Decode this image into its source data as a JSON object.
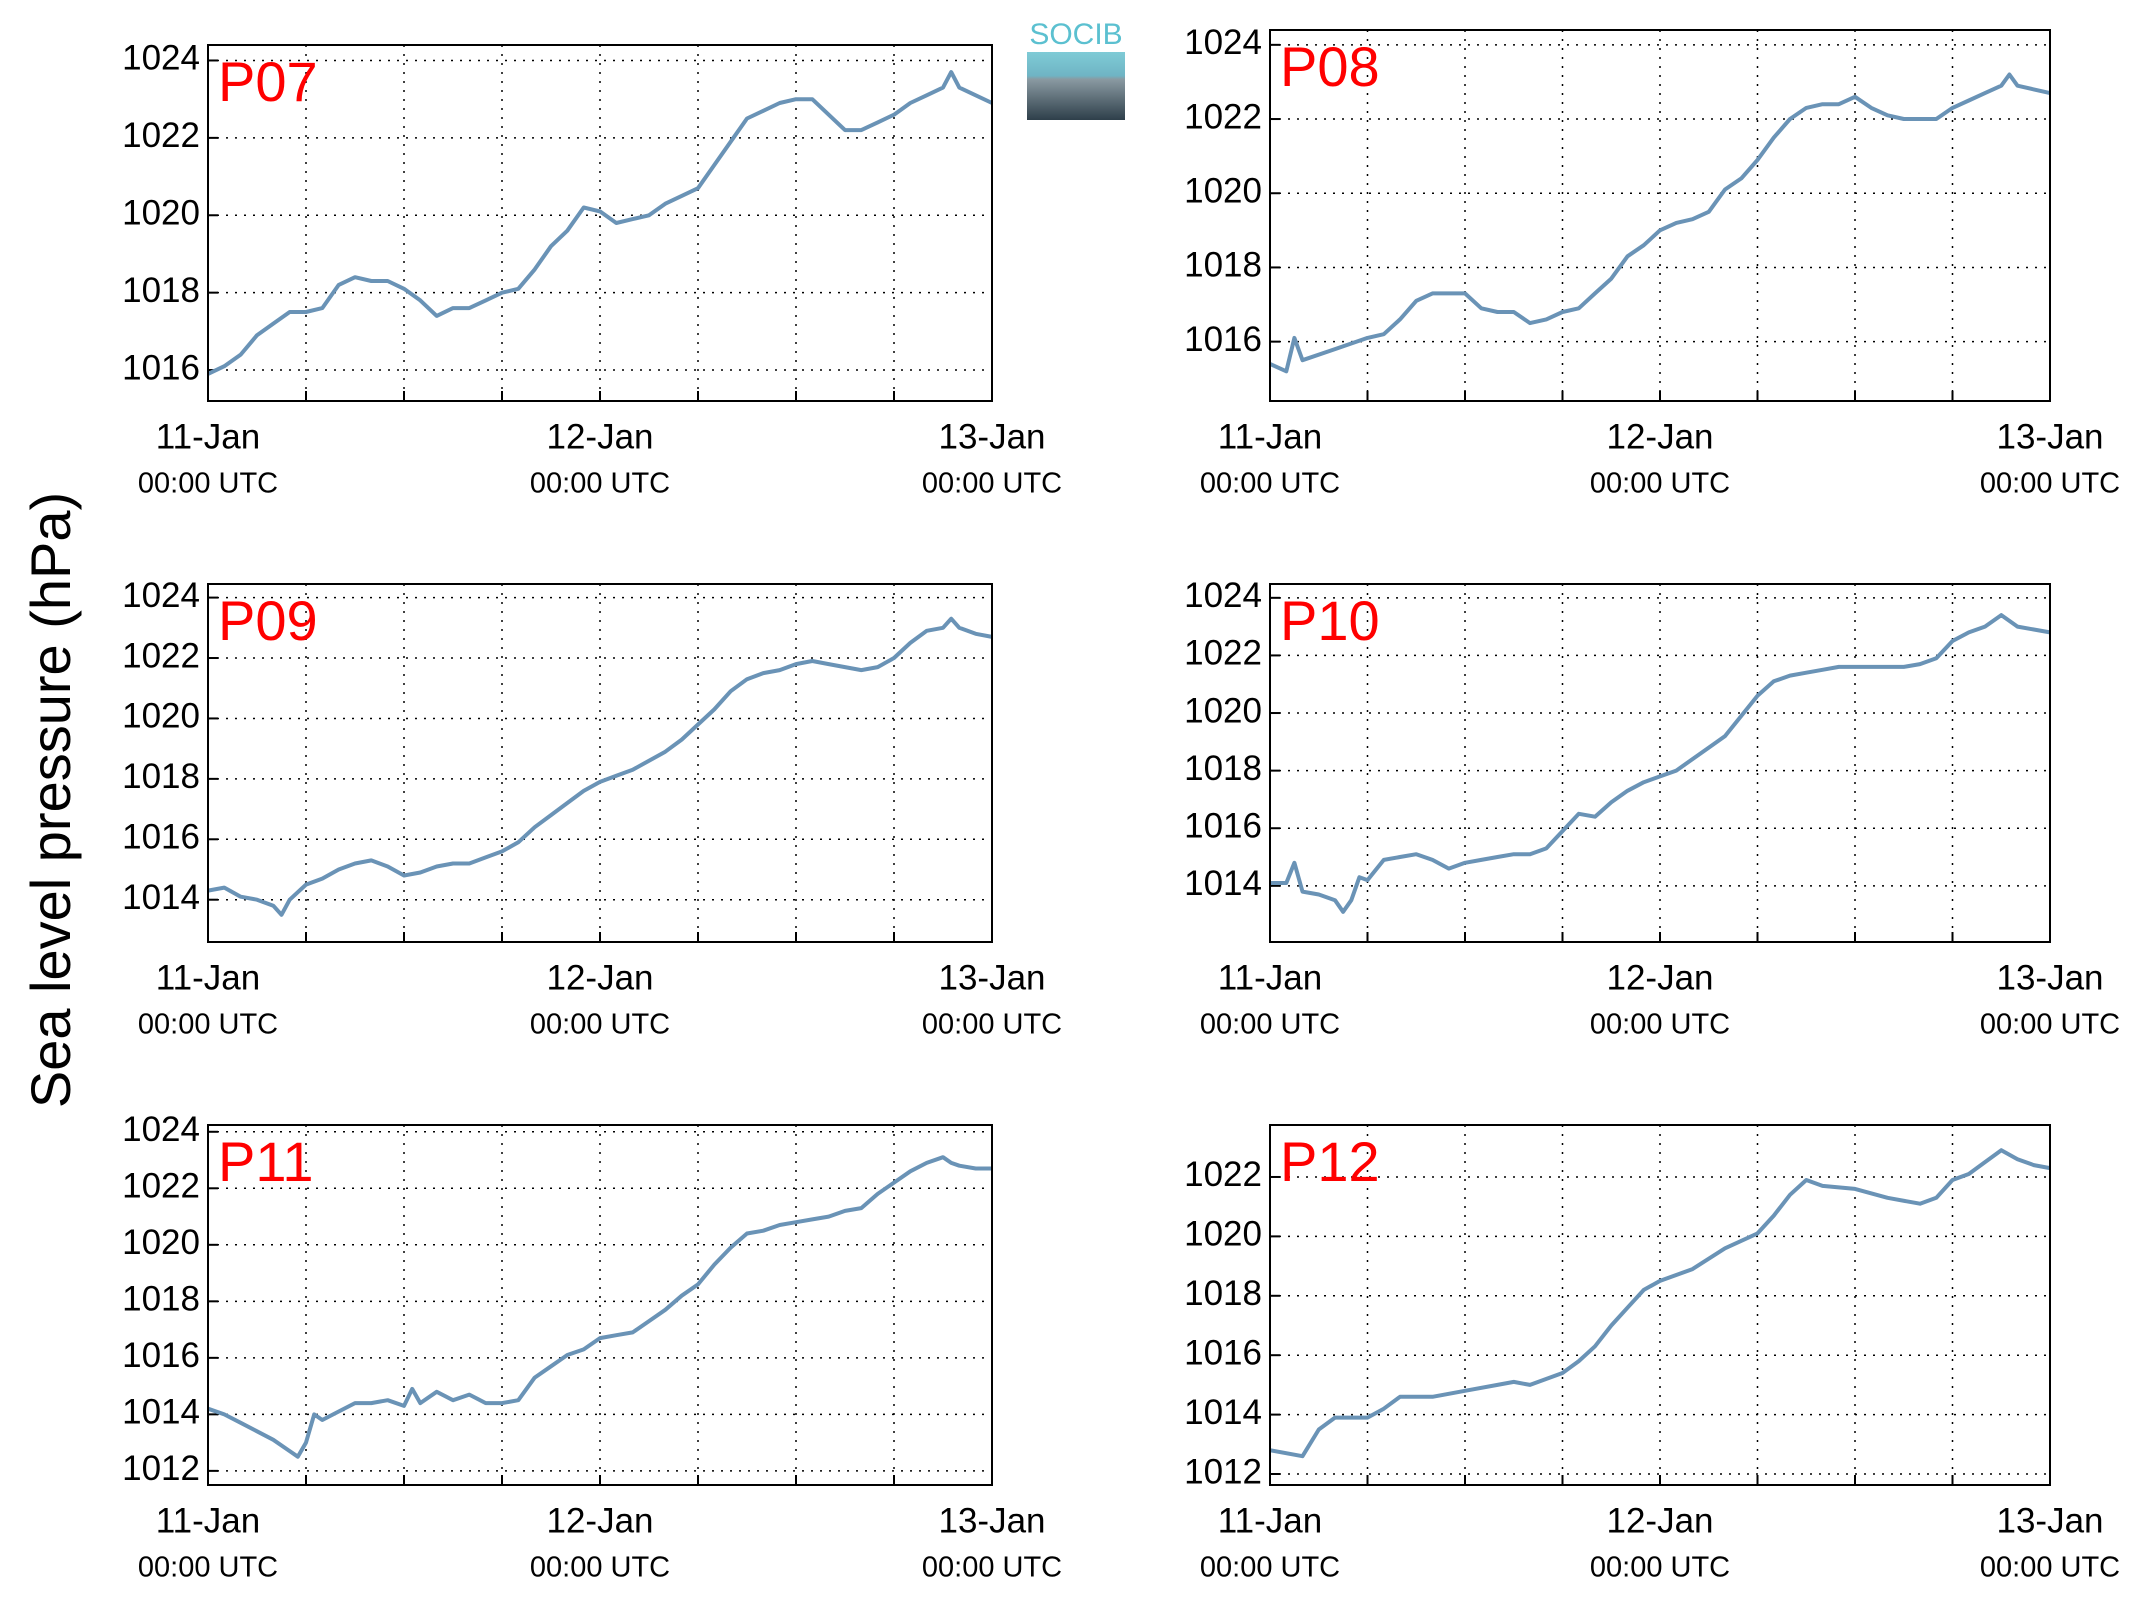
{
  "figure": {
    "ylabel": "Sea level pressure (hPa)",
    "logo": "SOCIB"
  },
  "chart_data": [
    {
      "type": "line",
      "title": "P07",
      "xlim": [
        0,
        48
      ],
      "ylim": [
        1015.2,
        1024.4
      ],
      "yticks": [
        1016,
        1018,
        1020,
        1022,
        1024
      ],
      "grid": true,
      "xticks": [
        {
          "value": 0,
          "label": "11-Jan",
          "sublabel": "00:00 UTC"
        },
        {
          "value": 6,
          "label": null
        },
        {
          "value": 12,
          "label": null
        },
        {
          "value": 18,
          "label": null
        },
        {
          "value": 24,
          "label": "12-Jan",
          "sublabel": "00:00 UTC"
        },
        {
          "value": 30,
          "label": null
        },
        {
          "value": 36,
          "label": null
        },
        {
          "value": 42,
          "label": null
        },
        {
          "value": 48,
          "label": "13-Jan",
          "sublabel": "00:00 UTC"
        }
      ],
      "x": [
        0,
        1,
        2,
        3,
        4,
        5,
        6,
        7,
        8,
        9,
        10,
        11,
        12,
        13,
        14,
        15,
        16,
        17,
        18,
        19,
        20,
        21,
        22,
        23,
        24,
        25,
        26,
        27,
        28,
        29,
        30,
        31,
        32,
        33,
        34,
        35,
        36,
        37,
        38,
        39,
        40,
        41,
        42,
        43,
        44,
        45,
        45.5,
        46,
        47,
        48
      ],
      "series": [
        {
          "color": "#6a93b6",
          "values": [
            1015.9,
            1016.1,
            1016.4,
            1016.9,
            1017.2,
            1017.5,
            1017.5,
            1017.6,
            1018.2,
            1018.4,
            1018.3,
            1018.3,
            1018.1,
            1017.8,
            1017.4,
            1017.6,
            1017.6,
            1017.8,
            1018.0,
            1018.1,
            1018.6,
            1019.2,
            1019.6,
            1020.2,
            1020.1,
            1019.8,
            1019.9,
            1020.0,
            1020.3,
            1020.5,
            1020.7,
            1021.3,
            1021.9,
            1022.5,
            1022.7,
            1022.9,
            1023.0,
            1023.0,
            1022.6,
            1022.2,
            1022.2,
            1022.4,
            1022.6,
            1022.9,
            1023.1,
            1023.3,
            1023.7,
            1023.3,
            1023.1,
            1022.9
          ]
        }
      ]
    },
    {
      "type": "line",
      "title": "P08",
      "xlim": [
        0,
        48
      ],
      "ylim": [
        1014.4,
        1024.4
      ],
      "yticks": [
        1016,
        1018,
        1020,
        1022,
        1024
      ],
      "grid": true,
      "xticks": [
        {
          "value": 0,
          "label": "11-Jan",
          "sublabel": "00:00 UTC"
        },
        {
          "value": 6,
          "label": null
        },
        {
          "value": 12,
          "label": null
        },
        {
          "value": 18,
          "label": null
        },
        {
          "value": 24,
          "label": "12-Jan",
          "sublabel": "00:00 UTC"
        },
        {
          "value": 30,
          "label": null
        },
        {
          "value": 36,
          "label": null
        },
        {
          "value": 42,
          "label": null
        },
        {
          "value": 48,
          "label": "13-Jan",
          "sublabel": "00:00 UTC"
        }
      ],
      "x": [
        0,
        1,
        1.5,
        2,
        4,
        6,
        7,
        8,
        9,
        10,
        11,
        12,
        13,
        14,
        15,
        16,
        17,
        18,
        19,
        20,
        21,
        22,
        23,
        24,
        25,
        26,
        27,
        28,
        29,
        30,
        31,
        32,
        33,
        34,
        35,
        36,
        37,
        38,
        39,
        40,
        41,
        42,
        43,
        44,
        45,
        45.5,
        46,
        47,
        48
      ],
      "series": [
        {
          "color": "#6a93b6",
          "values": [
            1015.4,
            1015.2,
            1016.1,
            1015.5,
            1015.8,
            1016.1,
            1016.2,
            1016.6,
            1017.1,
            1017.3,
            1017.3,
            1017.3,
            1016.9,
            1016.8,
            1016.8,
            1016.5,
            1016.6,
            1016.8,
            1016.9,
            1017.3,
            1017.7,
            1018.3,
            1018.6,
            1019.0,
            1019.2,
            1019.3,
            1019.5,
            1020.1,
            1020.4,
            1020.9,
            1021.5,
            1022.0,
            1022.3,
            1022.4,
            1022.4,
            1022.6,
            1022.3,
            1022.1,
            1022.0,
            1022.0,
            1022.0,
            1022.3,
            1022.5,
            1022.7,
            1022.9,
            1023.2,
            1022.9,
            1022.8,
            1022.7
          ]
        }
      ]
    },
    {
      "type": "line",
      "title": "P09",
      "xlim": [
        0,
        48
      ],
      "ylim": [
        1012.6,
        1024.45
      ],
      "yticks": [
        1014,
        1016,
        1018,
        1020,
        1022,
        1024
      ],
      "grid": true,
      "xticks": [
        {
          "value": 0,
          "label": "11-Jan",
          "sublabel": "00:00 UTC"
        },
        {
          "value": 6,
          "label": null
        },
        {
          "value": 12,
          "label": null
        },
        {
          "value": 18,
          "label": null
        },
        {
          "value": 24,
          "label": "12-Jan",
          "sublabel": "00:00 UTC"
        },
        {
          "value": 30,
          "label": null
        },
        {
          "value": 36,
          "label": null
        },
        {
          "value": 42,
          "label": null
        },
        {
          "value": 48,
          "label": "13-Jan",
          "sublabel": "00:00 UTC"
        }
      ],
      "x": [
        0,
        1,
        2,
        3,
        4,
        4.5,
        5,
        6,
        7,
        8,
        9,
        10,
        11,
        12,
        13,
        14,
        15,
        16,
        17,
        18,
        19,
        20,
        21,
        22,
        23,
        24,
        25,
        26,
        27,
        28,
        29,
        30,
        31,
        32,
        33,
        34,
        35,
        36,
        37,
        38,
        39,
        40,
        41,
        42,
        43,
        44,
        45,
        45.5,
        46,
        47,
        48
      ],
      "series": [
        {
          "color": "#6a93b6",
          "values": [
            1014.3,
            1014.4,
            1014.1,
            1014.0,
            1013.8,
            1013.5,
            1014.0,
            1014.5,
            1014.7,
            1015.0,
            1015.2,
            1015.3,
            1015.1,
            1014.8,
            1014.9,
            1015.1,
            1015.2,
            1015.2,
            1015.4,
            1015.6,
            1015.9,
            1016.4,
            1016.8,
            1017.2,
            1017.6,
            1017.9,
            1018.1,
            1018.3,
            1018.6,
            1018.9,
            1019.3,
            1019.8,
            1020.3,
            1020.9,
            1021.3,
            1021.5,
            1021.6,
            1021.8,
            1021.9,
            1021.8,
            1021.7,
            1021.6,
            1021.7,
            1022.0,
            1022.5,
            1022.9,
            1023.0,
            1023.3,
            1023.0,
            1022.8,
            1022.7
          ]
        }
      ]
    },
    {
      "type": "line",
      "title": "P10",
      "xlim": [
        0,
        48
      ],
      "ylim": [
        1012.05,
        1024.48
      ],
      "yticks": [
        1014,
        1016,
        1018,
        1020,
        1022,
        1024
      ],
      "grid": true,
      "xticks": [
        {
          "value": 0,
          "label": "11-Jan",
          "sublabel": "00:00 UTC"
        },
        {
          "value": 6,
          "label": null
        },
        {
          "value": 12,
          "label": null
        },
        {
          "value": 18,
          "label": null
        },
        {
          "value": 24,
          "label": "12-Jan",
          "sublabel": "00:00 UTC"
        },
        {
          "value": 30,
          "label": null
        },
        {
          "value": 36,
          "label": null
        },
        {
          "value": 42,
          "label": null
        },
        {
          "value": 48,
          "label": "13-Jan",
          "sublabel": "00:00 UTC"
        }
      ],
      "x": [
        0,
        1,
        1.5,
        2,
        3,
        4,
        4.5,
        5,
        5.5,
        6,
        7,
        8,
        9,
        10,
        11,
        12,
        13,
        14,
        15,
        16,
        17,
        18,
        19,
        20,
        21,
        22,
        23,
        24,
        25,
        26,
        27,
        28,
        29,
        30,
        31,
        32,
        33,
        34,
        35,
        36,
        37,
        38,
        39,
        40,
        41,
        42,
        43,
        44,
        45,
        46,
        47,
        48
      ],
      "series": [
        {
          "color": "#6a93b6",
          "values": [
            1014.1,
            1014.1,
            1014.8,
            1013.8,
            1013.7,
            1013.5,
            1013.1,
            1013.5,
            1014.3,
            1014.2,
            1014.9,
            1015.0,
            1015.1,
            1014.9,
            1014.6,
            1014.8,
            1014.9,
            1015.0,
            1015.1,
            1015.1,
            1015.3,
            1015.9,
            1016.5,
            1016.4,
            1016.9,
            1017.3,
            1017.6,
            1017.8,
            1018.0,
            1018.4,
            1018.8,
            1019.2,
            1019.9,
            1020.6,
            1021.1,
            1021.3,
            1021.4,
            1021.5,
            1021.6,
            1021.6,
            1021.6,
            1021.6,
            1021.6,
            1021.7,
            1021.9,
            1022.5,
            1022.8,
            1023.0,
            1023.4,
            1023.0,
            1022.9,
            1022.8
          ]
        }
      ]
    },
    {
      "type": "line",
      "title": "P11",
      "xlim": [
        0,
        48
      ],
      "ylim": [
        1011.5,
        1024.24
      ],
      "yticks": [
        1012,
        1014,
        1016,
        1018,
        1020,
        1022,
        1024
      ],
      "grid": true,
      "xticks": [
        {
          "value": 0,
          "label": "11-Jan",
          "sublabel": "00:00 UTC"
        },
        {
          "value": 6,
          "label": null
        },
        {
          "value": 12,
          "label": null
        },
        {
          "value": 18,
          "label": null
        },
        {
          "value": 24,
          "label": "12-Jan",
          "sublabel": "00:00 UTC"
        },
        {
          "value": 30,
          "label": null
        },
        {
          "value": 36,
          "label": null
        },
        {
          "value": 42,
          "label": null
        },
        {
          "value": 48,
          "label": "13-Jan",
          "sublabel": "00:00 UTC"
        }
      ],
      "x": [
        0,
        1,
        2,
        3,
        4,
        5,
        5.5,
        6,
        6.5,
        7,
        8,
        9,
        10,
        11,
        12,
        12.5,
        13,
        14,
        15,
        16,
        17,
        18,
        19,
        20,
        21,
        22,
        23,
        24,
        25,
        26,
        27,
        28,
        29,
        30,
        31,
        32,
        33,
        34,
        35,
        36,
        37,
        38,
        39,
        40,
        41,
        42,
        43,
        44,
        45,
        45.5,
        46,
        47,
        48
      ],
      "series": [
        {
          "color": "#6a93b6",
          "values": [
            1014.2,
            1014.0,
            1013.7,
            1013.4,
            1013.1,
            1012.7,
            1012.5,
            1013.0,
            1014.0,
            1013.8,
            1014.1,
            1014.4,
            1014.4,
            1014.5,
            1014.3,
            1014.9,
            1014.4,
            1014.8,
            1014.5,
            1014.7,
            1014.4,
            1014.4,
            1014.5,
            1015.3,
            1015.7,
            1016.1,
            1016.3,
            1016.7,
            1016.8,
            1016.9,
            1017.3,
            1017.7,
            1018.2,
            1018.6,
            1019.3,
            1019.9,
            1020.4,
            1020.5,
            1020.7,
            1020.8,
            1020.9,
            1021.0,
            1021.2,
            1021.3,
            1021.8,
            1022.2,
            1022.6,
            1022.9,
            1023.1,
            1022.9,
            1022.8,
            1022.7,
            1022.7
          ]
        }
      ]
    },
    {
      "type": "line",
      "title": "P12",
      "xlim": [
        0,
        48
      ],
      "ylim": [
        1011.63,
        1023.75
      ],
      "yticks": [
        1012,
        1014,
        1016,
        1018,
        1020,
        1022
      ],
      "grid": true,
      "xticks": [
        {
          "value": 0,
          "label": "11-Jan",
          "sublabel": "00:00 UTC"
        },
        {
          "value": 6,
          "label": null
        },
        {
          "value": 12,
          "label": null
        },
        {
          "value": 18,
          "label": null
        },
        {
          "value": 24,
          "label": "12-Jan",
          "sublabel": "00:00 UTC"
        },
        {
          "value": 30,
          "label": null
        },
        {
          "value": 36,
          "label": null
        },
        {
          "value": 42,
          "label": null
        },
        {
          "value": 48,
          "label": "13-Jan",
          "sublabel": "00:00 UTC"
        }
      ],
      "x": [
        0,
        2,
        3,
        4,
        6,
        7,
        8,
        10,
        12,
        14,
        15,
        16,
        18,
        19,
        20,
        21,
        22,
        23,
        24,
        26,
        28,
        30,
        31,
        32,
        33,
        34,
        36,
        38,
        40,
        41,
        42,
        43,
        44,
        45,
        46,
        47,
        48
      ],
      "series": [
        {
          "color": "#6a93b6",
          "values": [
            1012.8,
            1012.6,
            1013.5,
            1013.9,
            1013.9,
            1014.2,
            1014.6,
            1014.6,
            1014.8,
            1015.0,
            1015.1,
            1015.0,
            1015.4,
            1015.8,
            1016.3,
            1017.0,
            1017.6,
            1018.2,
            1018.5,
            1018.9,
            1019.6,
            1020.1,
            1020.7,
            1021.4,
            1021.9,
            1021.7,
            1021.6,
            1021.3,
            1021.1,
            1021.3,
            1021.9,
            1022.1,
            1022.5,
            1022.9,
            1022.6,
            1022.4,
            1022.3
          ]
        }
      ]
    }
  ]
}
